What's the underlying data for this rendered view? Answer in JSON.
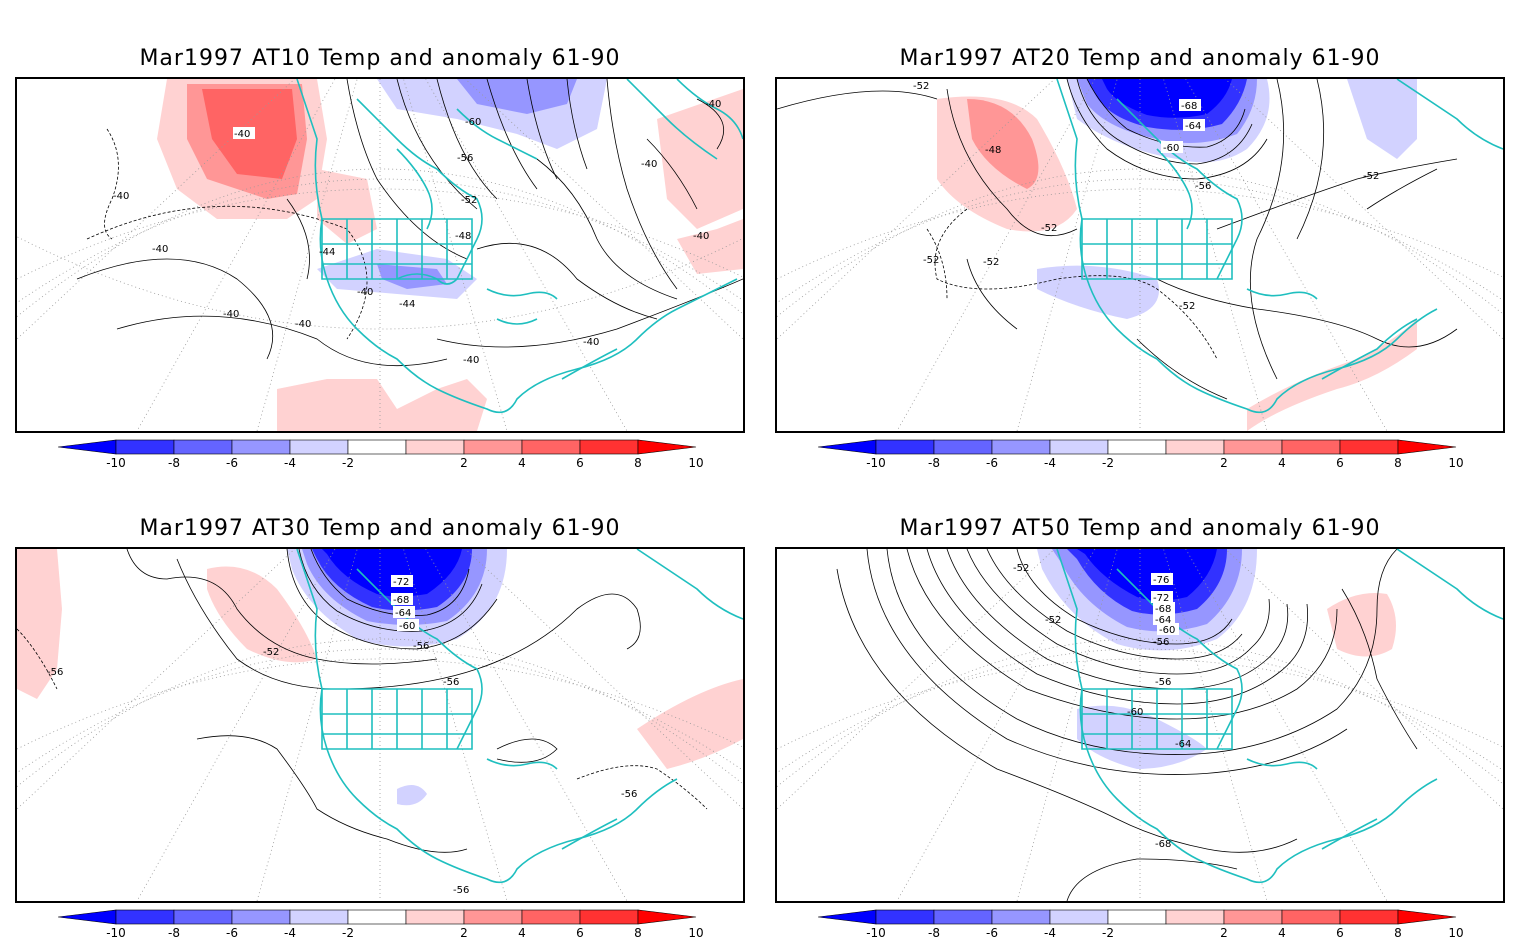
{
  "panels": [
    {
      "title": "Mar1997 AT10 Temp and anomaly 61-90",
      "contour_labels": [
        "-40",
        "-40",
        "-40",
        "-40",
        "-40",
        "-40",
        "-40",
        "-40",
        "-40",
        "-40",
        "-40",
        "-44",
        "-44",
        "-48",
        "-52",
        "-56",
        "-60"
      ]
    },
    {
      "title": "Mar1997 AT20 Temp and anomaly 61-90",
      "contour_labels": [
        "-52",
        "-48",
        "-52",
        "-52",
        "-52",
        "-52",
        "-56",
        "-60",
        "-64",
        "-68",
        "-52"
      ]
    },
    {
      "title": "Mar1997 AT30 Temp and anomaly 61-90",
      "contour_labels": [
        "-72",
        "-68",
        "-64",
        "-60",
        "-56",
        "-52",
        "-56",
        "-56",
        "-56",
        "-56"
      ]
    },
    {
      "title": "Mar1997 AT50 Temp and anomaly 61-90",
      "contour_labels": [
        "-76",
        "-72",
        "-68",
        "-64",
        "-60",
        "-56",
        "-52",
        "-52",
        "-56",
        "-60",
        "-64",
        "-68"
      ]
    }
  ],
  "colorbar": {
    "labels": [
      "-10",
      "-8",
      "-6",
      "-4",
      "-2",
      "2",
      "4",
      "6",
      "8",
      "10"
    ],
    "colors": [
      "#0000ff",
      "#3232ff",
      "#6464ff",
      "#9696ff",
      "#d2d2ff",
      "#ffffff",
      "#ffd2d2",
      "#ff9696",
      "#ff6464",
      "#ff3232",
      "#ff0000"
    ]
  },
  "style": {
    "coast_color": "#1fbfbf",
    "contour_color": "#000000",
    "grid_color": "#999999"
  }
}
